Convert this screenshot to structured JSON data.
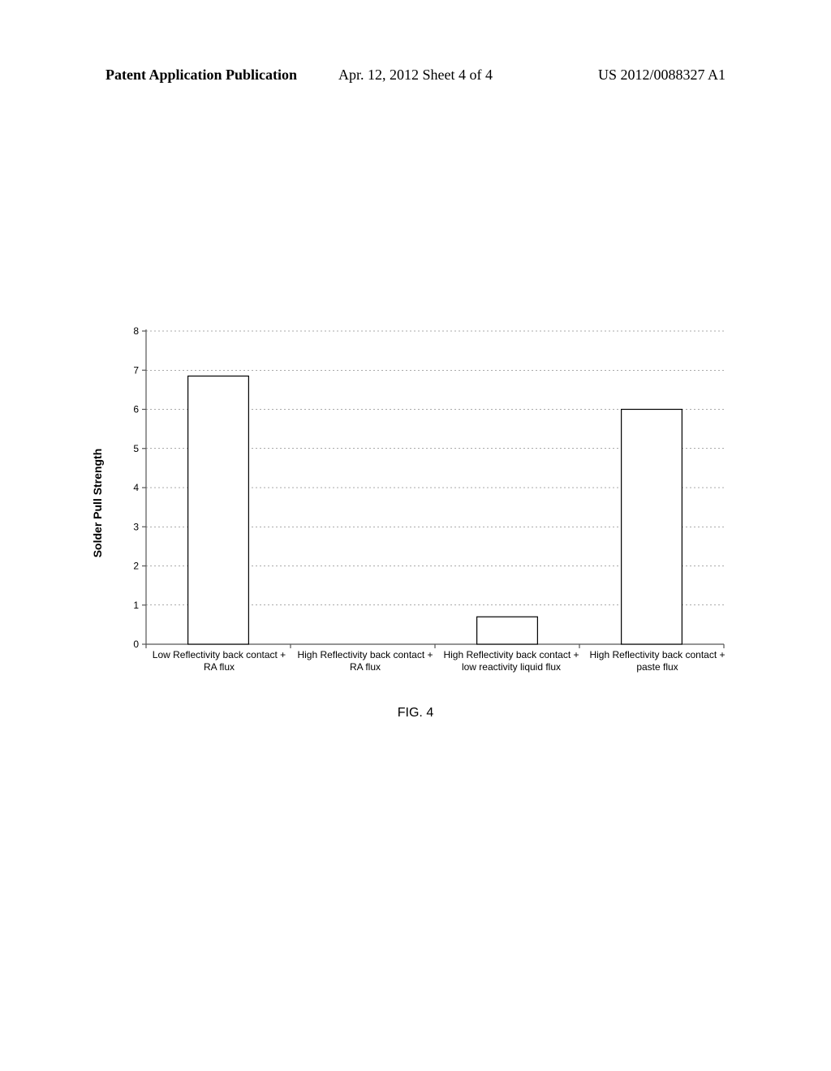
{
  "header": {
    "left": "Patent Application Publication",
    "center": "Apr. 12, 2012  Sheet 4 of 4",
    "right": "US 2012/0088327 A1"
  },
  "chart": {
    "type": "bar",
    "ylabel": "Solder Pull Strength",
    "ylim": [
      0,
      8
    ],
    "ytick_step": 1,
    "yticks": [
      0,
      1,
      2,
      3,
      4,
      5,
      6,
      7,
      8
    ],
    "categories": [
      "Low Reflectivity back contact + RA flux",
      "High Reflectivity back contact + RA flux",
      "High Reflectivity back contact + low reactivity liquid flux",
      "High Reflectivity back contact + paste flux"
    ],
    "values": [
      6.85,
      0,
      0.7,
      6.0
    ],
    "bar_fill": "#ffffff",
    "bar_border": "#000000",
    "bar_border_width": 1.2,
    "bar_width_ratio": 0.42,
    "plot_bg": "#ffffff",
    "axis_color": "#555555",
    "axis_width": 1.2,
    "grid_color": "#555555",
    "grid_dash": "2 3",
    "grid_width": 0.6,
    "tick_font_family": "Arial, Helvetica, sans-serif",
    "tick_fontsize": 12,
    "tick_color": "#000000",
    "label_fontsize": 14,
    "label_fontweight": "bold"
  },
  "figcaption": "FIG. 4"
}
